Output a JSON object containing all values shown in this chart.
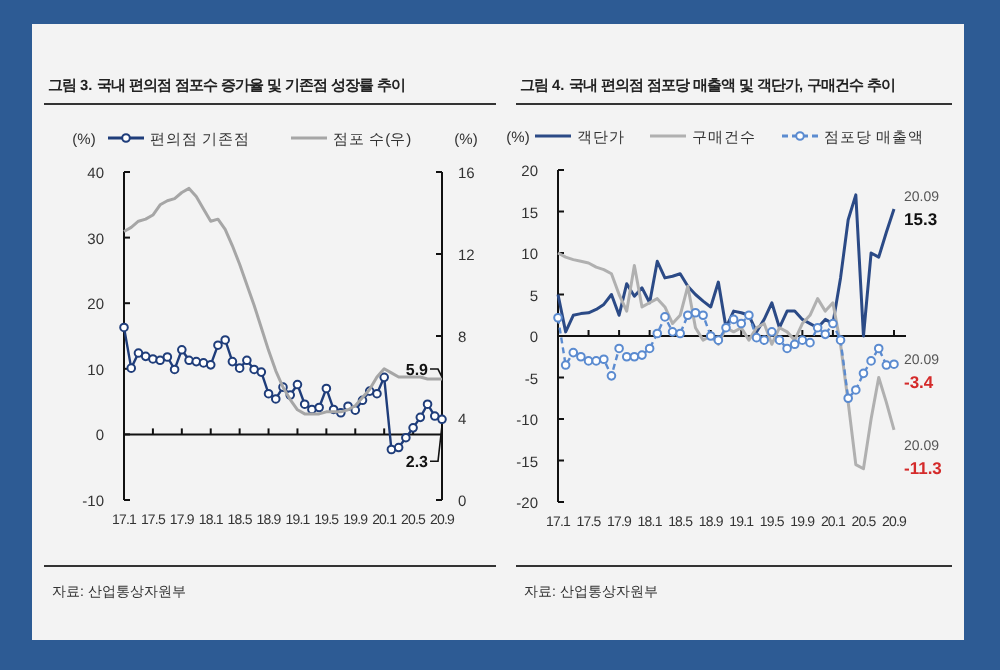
{
  "chart_data": [
    {
      "type": "line",
      "title": "그림 3. 국내 편의점 점포수 증가율 및 기존점 성장률 추이",
      "categories": [
        "17.1",
        null,
        null,
        null,
        "17.5",
        null,
        null,
        null,
        "17.9",
        null,
        null,
        null,
        "18.1",
        null,
        null,
        null,
        "18.5",
        null,
        null,
        null,
        "18.9",
        null,
        null,
        null,
        "19.1",
        null,
        null,
        null,
        "19.5",
        null,
        null,
        null,
        "19.9",
        null,
        null,
        null,
        "20.1",
        null,
        null,
        null,
        "20.5",
        null,
        null,
        null,
        "20.9"
      ],
      "series": [
        {
          "name": "편의점 기존점",
          "color": "#1f3d7a",
          "marker": "circle",
          "values": [
            16.3,
            10.1,
            12.4,
            11.9,
            11.5,
            11.3,
            11.8,
            9.9,
            12.9,
            11.3,
            11.1,
            10.9,
            10.6,
            13.6,
            14.4,
            11.1,
            10.1,
            11.3,
            9.9,
            9.5,
            6.2,
            5.4,
            7.2,
            6.0,
            7.6,
            4.6,
            3.8,
            4.1,
            7.0,
            3.8,
            3.3,
            4.3,
            3.7,
            5.2,
            6.6,
            6.2,
            8.7,
            -2.3,
            -2.0,
            -0.5,
            1.0,
            2.6,
            4.6,
            2.8,
            2.3
          ]
        },
        {
          "name": "점포 수(우)",
          "color": "#a6a6a6",
          "axis": "y2",
          "values": [
            13.1,
            13.3,
            13.6,
            13.7,
            13.9,
            14.4,
            14.6,
            14.7,
            15.0,
            15.2,
            14.8,
            14.2,
            13.6,
            13.7,
            13.2,
            12.4,
            11.5,
            10.5,
            9.5,
            8.4,
            7.3,
            6.3,
            5.5,
            4.9,
            4.4,
            4.2,
            4.2,
            4.2,
            4.3,
            4.3,
            4.3,
            4.4,
            4.6,
            5.0,
            5.4,
            6.0,
            6.4,
            6.2,
            6.0,
            6.0,
            6.0,
            6.0,
            5.9,
            5.9,
            5.9
          ]
        }
      ],
      "ylabel": "(%)",
      "y2label": "(%)",
      "ylim": [
        -10,
        40
      ],
      "yticks": [
        -10,
        0,
        10,
        20,
        30,
        40
      ],
      "y2lim": [
        0,
        16
      ],
      "y2ticks": [
        0,
        4,
        8,
        12,
        16
      ],
      "legend": "top",
      "annotations": [
        "5.9",
        {
          "text": "2.3",
          "x": "20.9",
          "y": 2.3
        },
        "자료: 산업통상자원부"
      ]
    },
    {
      "type": "line",
      "title": "그림 4. 국내 편의점 점포당 매출액 및 객단가, 구매건수 추이",
      "categories": [
        "17.1",
        null,
        null,
        null,
        "17.5",
        null,
        null,
        null,
        "17.9",
        null,
        null,
        null,
        "18.1",
        null,
        null,
        null,
        "18.5",
        null,
        null,
        null,
        "18.9",
        null,
        null,
        null,
        "19.1",
        null,
        null,
        null,
        "19.5",
        null,
        null,
        null,
        "19.9",
        null,
        null,
        null,
        "20.1",
        null,
        null,
        null,
        "20.5",
        null,
        null,
        null,
        "20.9"
      ],
      "series": [
        {
          "name": "객단가",
          "color": "#2b4a86",
          "values": [
            5.0,
            0.5,
            2.5,
            2.7,
            2.8,
            3.2,
            3.8,
            5.0,
            2.5,
            6.3,
            4.8,
            5.8,
            4.0,
            9.0,
            7.0,
            7.2,
            7.5,
            6.0,
            5.0,
            4.2,
            3.5,
            6.5,
            1.0,
            3.0,
            2.8,
            2.5,
            0.5,
            2.0,
            4.0,
            1.0,
            3.0,
            3.0,
            2.0,
            1.5,
            1.0,
            2.0,
            1.5,
            7.0,
            14.0,
            17.0,
            0.0,
            10.0,
            9.5,
            12.5,
            15.3
          ]
        },
        {
          "name": "구매건수",
          "color": "#b0b0b0",
          "values": [
            10.0,
            9.5,
            9.2,
            9.0,
            8.8,
            8.3,
            8.0,
            7.5,
            5.0,
            3.0,
            8.5,
            3.5,
            4.0,
            4.5,
            3.5,
            1.5,
            2.5,
            6.0,
            1.0,
            -0.5,
            0.0,
            -1.0,
            1.0,
            0.5,
            1.0,
            -0.5,
            1.0,
            1.5,
            -1.0,
            1.0,
            0.5,
            -0.5,
            1.5,
            2.5,
            4.5,
            3.0,
            4.0,
            -1.0,
            -8.0,
            -15.5,
            -16.0,
            -10.0,
            -5.0,
            -8.0,
            -11.3
          ]
        },
        {
          "name": "점포당 매출액",
          "color": "#5b8bd0",
          "marker": "circle",
          "line_style": "dashed",
          "values": [
            2.2,
            -3.5,
            -2.0,
            -2.5,
            -3.0,
            -3.0,
            -2.8,
            -4.8,
            -1.5,
            -2.5,
            -2.5,
            -2.3,
            -1.5,
            0.3,
            2.3,
            0.5,
            0.3,
            2.5,
            2.8,
            2.5,
            0.0,
            -0.5,
            1.0,
            2.0,
            1.5,
            2.5,
            -0.2,
            -0.5,
            0.5,
            -0.5,
            -1.5,
            -1.0,
            -0.5,
            -0.8,
            1.0,
            0.2,
            1.5,
            -0.5,
            -7.5,
            -6.5,
            -4.5,
            -3.0,
            -1.5,
            -3.5,
            -3.4
          ]
        }
      ],
      "ylabel": "(%)",
      "ylim": [
        -20,
        20
      ],
      "yticks": [
        -20,
        -15,
        -10,
        -5,
        0,
        5,
        10,
        15,
        20
      ],
      "legend": "top",
      "annotations": [
        {
          "text": "20.09",
          "x": "20.9",
          "y": 15.3
        },
        {
          "text": "15.3",
          "x": "20.9",
          "y": 15.3
        },
        {
          "text": "20.09",
          "x": "20.9",
          "y": -3.4
        },
        {
          "text": "-3.4",
          "x": "20.9",
          "y": -3.4
        },
        {
          "text": "20.09",
          "x": "20.9",
          "y": -11.3
        },
        {
          "text": "-11.3",
          "x": "20.9",
          "y": -11.3
        },
        "자료: 산업통상자원부"
      ]
    }
  ]
}
